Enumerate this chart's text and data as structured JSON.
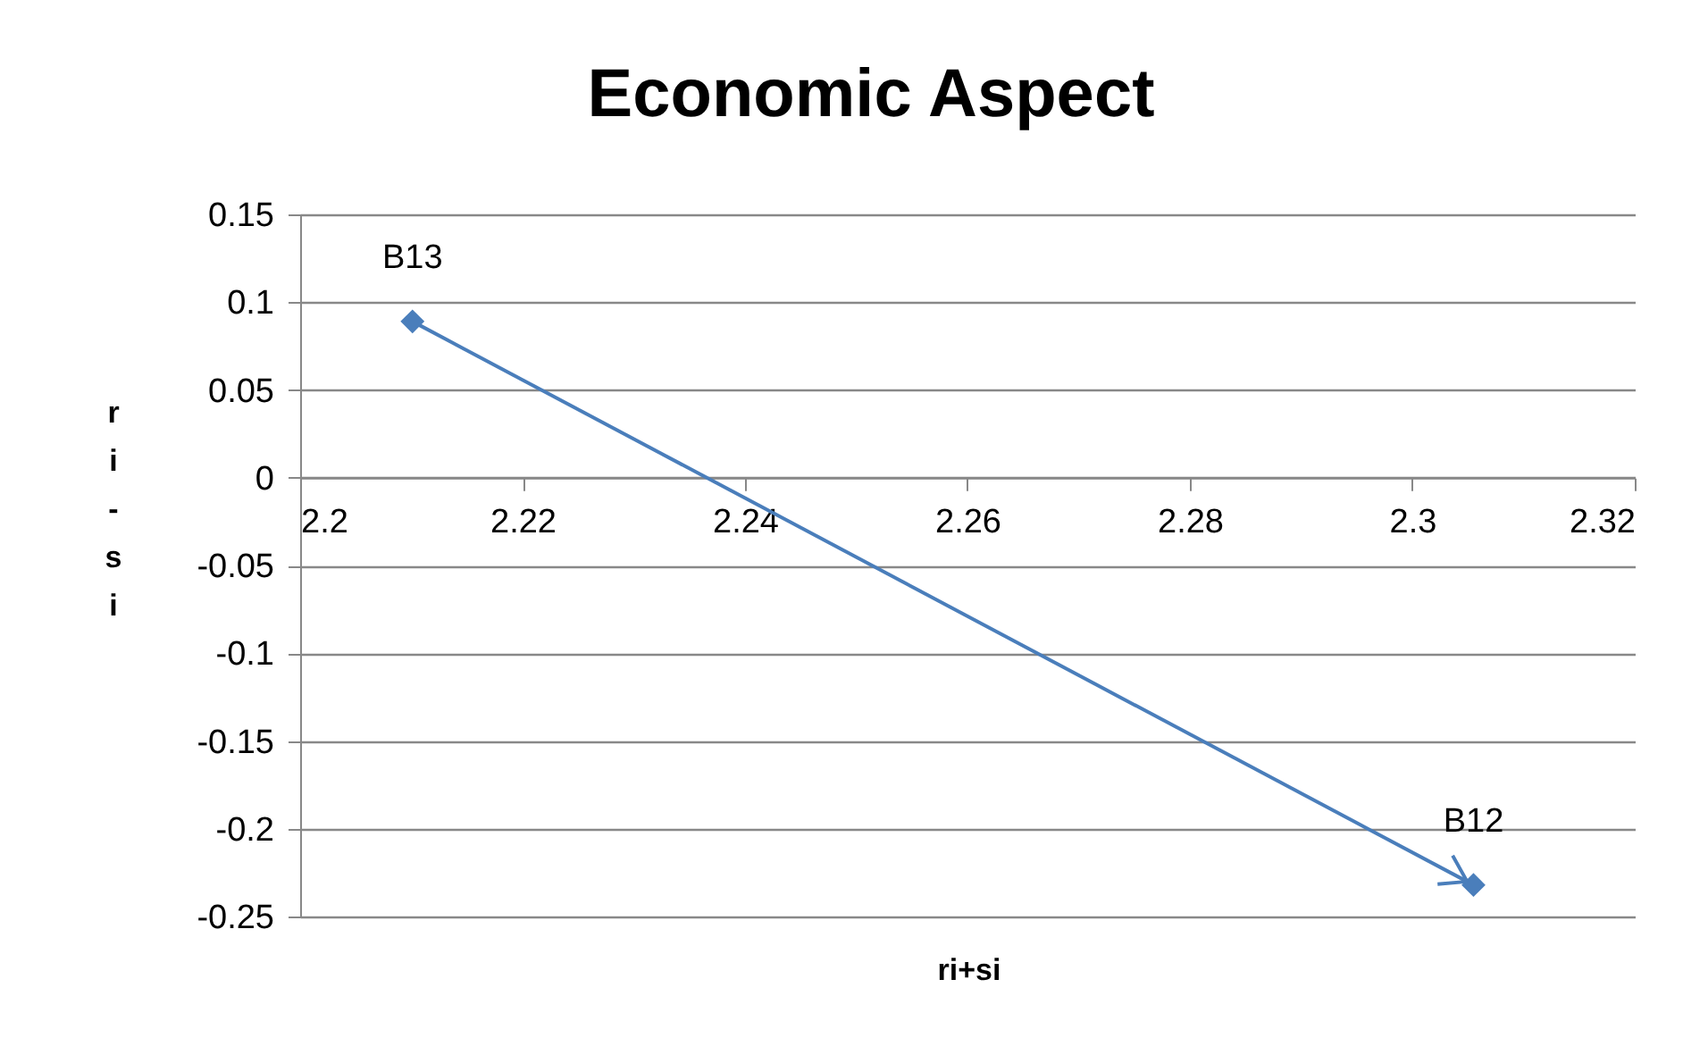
{
  "chart_data": {
    "type": "line",
    "title": "Economic Aspect",
    "xlabel": "ri+si",
    "ylabel": "ri-si",
    "x": [
      2.2101,
      2.3055
    ],
    "series": [
      {
        "color": "#4a7ebb",
        "values": [
          0.089,
          -0.232
        ]
      }
    ],
    "annotations": [
      {
        "text": "B13",
        "x": 2.2101,
        "y": 0.089
      },
      {
        "text": "B12",
        "x": 2.3055,
        "y": -0.232
      }
    ],
    "xlim": [
      2.2,
      2.32
    ],
    "xticks": [
      2.2,
      2.22,
      2.24,
      2.26,
      2.28,
      2.3,
      2.32
    ],
    "ylim": [
      -0.25,
      0.15
    ],
    "yticks": [
      -0.25,
      -0.2,
      -0.15,
      -0.1,
      -0.05,
      0,
      0.05,
      0.1,
      0.15
    ],
    "grid": "y",
    "marker": "diamond",
    "line_style": "solid"
  }
}
